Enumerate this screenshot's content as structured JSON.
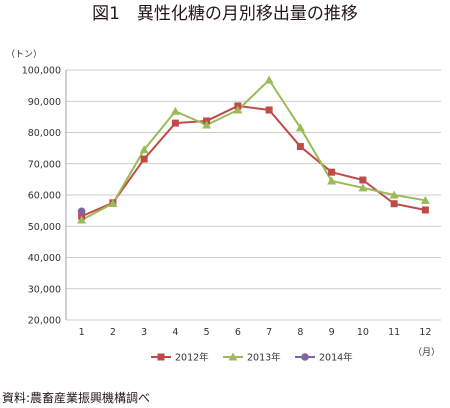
{
  "chart_data": {
    "type": "line",
    "title": "図1　異性化糖の月別移出量の推移",
    "ylabel": "（トン）",
    "xlabel": "（月）",
    "ylim": [
      20000,
      100000
    ],
    "ytick_step": 10000,
    "ytick_labels": [
      "20,000",
      "30,000",
      "40,000",
      "50,000",
      "60,000",
      "70,000",
      "80,000",
      "90,000",
      "100,000"
    ],
    "categories": [
      "1",
      "2",
      "3",
      "4",
      "5",
      "6",
      "7",
      "8",
      "9",
      "10",
      "11",
      "12"
    ],
    "grid": "horizontal",
    "legend": "bottom",
    "series": [
      {
        "name": "2012年",
        "color": "#be4b48",
        "marker": "square",
        "values": [
          53200,
          57500,
          71500,
          83000,
          83700,
          88500,
          87200,
          75500,
          67300,
          64800,
          57200,
          55200
        ]
      },
      {
        "name": "2013年",
        "color": "#9bbb59",
        "marker": "triangle",
        "values": [
          52000,
          57300,
          74500,
          86800,
          82400,
          87200,
          96800,
          81500,
          64500,
          62300,
          60000,
          58300
        ]
      },
      {
        "name": "2014年",
        "color": "#8064a2",
        "marker": "circle",
        "values": [
          54800,
          null,
          null,
          null,
          null,
          null,
          null,
          null,
          null,
          null,
          null,
          null
        ]
      }
    ]
  },
  "source": "資料:農畜産業振興機構調べ"
}
